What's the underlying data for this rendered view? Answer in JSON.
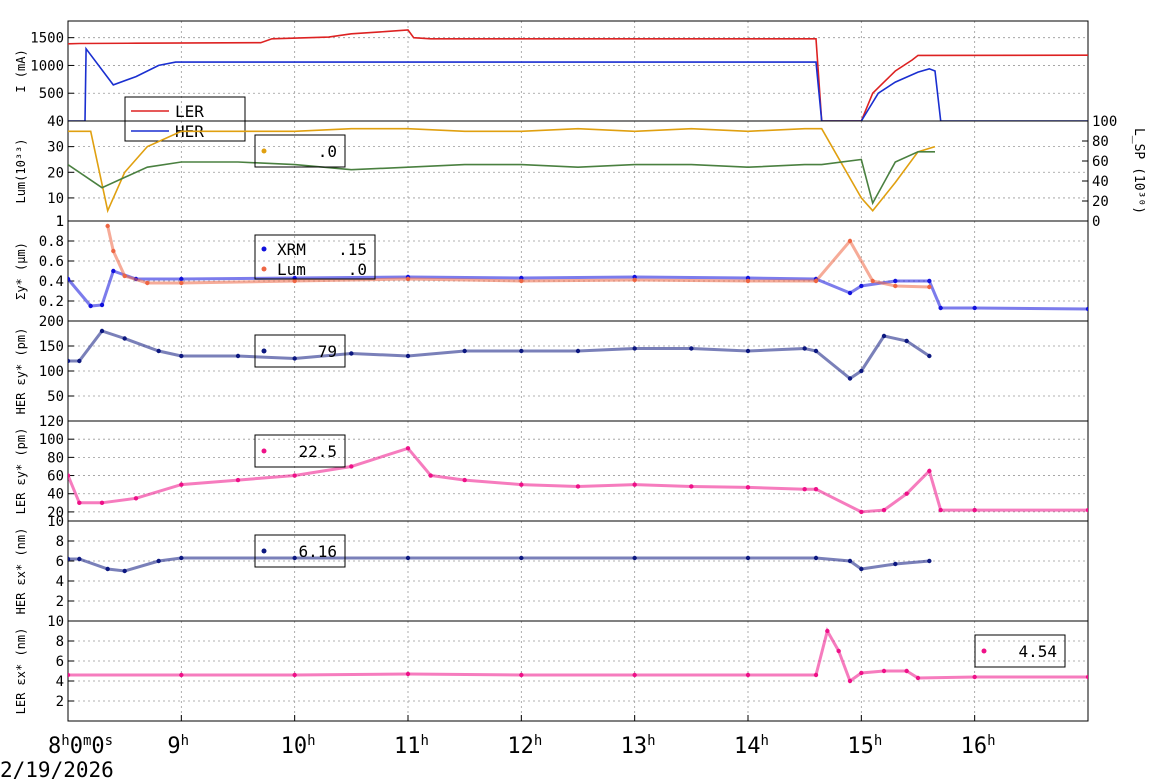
{
  "chart_data": [
    {
      "type": "line",
      "id": "current",
      "ylabel": "I (mA)",
      "yticks": [
        "500",
        "1000",
        "1500"
      ],
      "ylim": [
        0,
        1800
      ],
      "grid": true,
      "legend": {
        "placement": "bottom-left",
        "entries": [
          {
            "name": "LER",
            "color": "#dd2222"
          },
          {
            "name": "HER",
            "color": "#1a2fd0"
          }
        ]
      },
      "series": [
        {
          "name": "LER",
          "color": "#dd2222",
          "x": [
            8.0,
            8.1,
            8.6,
            9.7,
            9.8,
            10.3,
            10.5,
            10.8,
            11.0,
            11.05,
            11.2,
            14.6,
            14.65,
            15.0,
            15.1,
            15.2,
            15.3,
            15.45,
            15.5,
            17.0
          ],
          "y": [
            1390,
            1395,
            1400,
            1410,
            1480,
            1510,
            1570,
            1610,
            1640,
            1500,
            1480,
            1480,
            0,
            0,
            500,
            700,
            900,
            1100,
            1180,
            1185
          ]
        },
        {
          "name": "HER",
          "color": "#1a2fd0",
          "x": [
            8.0,
            8.15,
            8.16,
            8.4,
            8.6,
            8.8,
            8.95,
            14.6,
            14.65,
            15.0,
            15.15,
            15.3,
            15.5,
            15.6,
            15.65,
            15.7,
            17.0
          ],
          "y": [
            0,
            0,
            1300,
            650,
            800,
            1000,
            1060,
            1060,
            0,
            0,
            500,
            700,
            880,
            940,
            900,
            0,
            0
          ]
        }
      ]
    },
    {
      "type": "line",
      "id": "luminosity",
      "ylabel": "Lum(10³³)",
      "yticks": [
        "1",
        "10",
        "20",
        "30",
        "40"
      ],
      "ylim": [
        1,
        40
      ],
      "y2label": "L_SP (10³⁰)",
      "y2ticks": [
        "0",
        "20",
        "40",
        "60",
        "80",
        "100"
      ],
      "y2lim": [
        0,
        100
      ],
      "grid": true,
      "legend": {
        "placement": "top-center",
        "entries": [
          {
            "name": "",
            "value": ".0",
            "color": "#e0a010"
          }
        ]
      },
      "series": [
        {
          "name": "",
          "color": "#e0a010",
          "x": [
            8.0,
            8.2,
            8.35,
            8.5,
            8.7,
            9.0,
            9.5,
            10.0,
            10.5,
            11.0,
            11.5,
            12.0,
            12.5,
            13.0,
            13.5,
            14.0,
            14.5,
            14.65,
            15.0,
            15.1,
            15.3,
            15.5,
            15.65
          ],
          "y": [
            36,
            36,
            5,
            20,
            30,
            36,
            36,
            36,
            37,
            37,
            36,
            36,
            37,
            36,
            37,
            36,
            37,
            37,
            10,
            5,
            16,
            28,
            30
          ]
        },
        {
          "name": "",
          "color": "#4a8040",
          "x": [
            8.0,
            8.3,
            8.5,
            8.7,
            9.0,
            9.5,
            10.0,
            10.5,
            11.0,
            11.5,
            12.0,
            12.5,
            13.0,
            13.5,
            14.0,
            14.5,
            14.65,
            15.0,
            15.1,
            15.3,
            15.5,
            15.65
          ],
          "y": [
            23,
            14,
            18,
            22,
            24,
            24,
            23,
            21,
            22,
            23,
            23,
            22,
            23,
            23,
            22,
            23,
            23,
            25,
            8,
            24,
            28,
            28
          ]
        }
      ]
    },
    {
      "type": "scatter",
      "id": "sigma_y",
      "ylabel": "Σy* (μm)",
      "yticks": [
        "0.2",
        "0.4",
        "0.6",
        "0.8",
        "1"
      ],
      "ylim": [
        0,
        1
      ],
      "grid": true,
      "legend": {
        "placement": "top-center",
        "entries": [
          {
            "name": "XRM",
            "value": ".15",
            "color": "#1010dd"
          },
          {
            "name": "Lum",
            "value": ".0",
            "color": "#ee6644"
          }
        ]
      },
      "series": [
        {
          "name": "XRM",
          "color": "#1010dd",
          "x": [
            8.0,
            8.2,
            8.3,
            8.4,
            8.6,
            9.0,
            10.0,
            11.0,
            12.0,
            13.0,
            14.0,
            14.6,
            14.9,
            15.0,
            15.3,
            15.6,
            15.7,
            16.0,
            17.0
          ],
          "y": [
            0.42,
            0.15,
            0.16,
            0.5,
            0.42,
            0.42,
            0.43,
            0.44,
            0.43,
            0.44,
            0.43,
            0.42,
            0.28,
            0.35,
            0.4,
            0.4,
            0.13,
            0.13,
            0.12
          ]
        },
        {
          "name": "Lum",
          "color": "#ee6644",
          "x": [
            8.35,
            8.4,
            8.5,
            8.7,
            9.0,
            10.0,
            11.0,
            12.0,
            13.0,
            14.0,
            14.6,
            14.9,
            15.1,
            15.3,
            15.6
          ],
          "y": [
            0.95,
            0.7,
            0.45,
            0.38,
            0.38,
            0.4,
            0.42,
            0.4,
            0.41,
            0.4,
            0.4,
            0.8,
            0.4,
            0.35,
            0.34
          ]
        }
      ]
    },
    {
      "type": "scatter",
      "id": "her_eps_y",
      "ylabel": "HER εy* (pm)",
      "yticks": [
        "50",
        "100",
        "150",
        "200"
      ],
      "ylim": [
        0,
        200
      ],
      "grid": true,
      "legend": {
        "placement": "top-center",
        "entries": [
          {
            "name": "",
            "value": "79",
            "color": "#0c1880"
          }
        ]
      },
      "series": [
        {
          "name": "",
          "color": "#0c1880",
          "x": [
            8.0,
            8.1,
            8.3,
            8.5,
            8.8,
            9.0,
            9.5,
            10.0,
            10.5,
            11.0,
            11.5,
            12.0,
            12.5,
            13.0,
            13.5,
            14.0,
            14.5,
            14.6,
            14.9,
            15.0,
            15.2,
            15.4,
            15.6
          ],
          "y": [
            120,
            120,
            180,
            165,
            140,
            130,
            130,
            125,
            135,
            130,
            140,
            140,
            140,
            145,
            145,
            140,
            145,
            140,
            85,
            100,
            170,
            160,
            130
          ]
        }
      ]
    },
    {
      "type": "scatter",
      "id": "ler_eps_y",
      "ylabel": "LER εy* (pm)",
      "yticks": [
        "10",
        "20",
        "40",
        "60",
        "80",
        "100",
        "120"
      ],
      "ylim": [
        10,
        120
      ],
      "grid": true,
      "legend": {
        "placement": "top-center",
        "entries": [
          {
            "name": "",
            "value": "22.5",
            "color": "#ee1188"
          }
        ]
      },
      "series": [
        {
          "name": "",
          "color": "#ee1188",
          "x": [
            8.0,
            8.1,
            8.3,
            8.6,
            9.0,
            9.5,
            10.0,
            10.5,
            11.0,
            11.2,
            11.5,
            12.0,
            12.5,
            13.0,
            13.5,
            14.0,
            14.5,
            14.6,
            15.0,
            15.2,
            15.4,
            15.6,
            15.7,
            16.0,
            17.0
          ],
          "y": [
            60,
            30,
            30,
            35,
            50,
            55,
            60,
            70,
            90,
            60,
            55,
            50,
            48,
            50,
            48,
            47,
            45,
            45,
            20,
            22,
            40,
            65,
            22,
            22,
            22
          ]
        }
      ]
    },
    {
      "type": "scatter",
      "id": "her_eps_x",
      "ylabel": "HER εx* (nm)",
      "yticks": [
        "2",
        "4",
        "6",
        "8"
      ],
      "ylim": [
        0,
        10
      ],
      "grid": true,
      "legend": {
        "placement": "top-center",
        "entries": [
          {
            "name": "",
            "value": "6.16",
            "color": "#0c1880"
          }
        ]
      },
      "series": [
        {
          "name": "",
          "color": "#0c1880",
          "x": [
            8.0,
            8.1,
            8.35,
            8.5,
            8.8,
            9.0,
            10.0,
            11.0,
            12.0,
            13.0,
            14.0,
            14.6,
            14.9,
            15.0,
            15.3,
            15.6
          ],
          "y": [
            6.2,
            6.2,
            5.2,
            5.0,
            6.0,
            6.3,
            6.3,
            6.3,
            6.3,
            6.3,
            6.3,
            6.3,
            6.0,
            5.2,
            5.7,
            6.0
          ]
        }
      ]
    },
    {
      "type": "scatter",
      "id": "ler_eps_x",
      "ylabel": "LER εx* (nm)",
      "yticks": [
        "2",
        "4",
        "6",
        "8",
        "10"
      ],
      "ylim": [
        0,
        10
      ],
      "grid": true,
      "legend": {
        "placement": "top-right",
        "entries": [
          {
            "name": "",
            "value": "4.54",
            "color": "#ee1188"
          }
        ]
      },
      "series": [
        {
          "name": "",
          "color": "#ee1188",
          "x": [
            8.0,
            9.0,
            10.0,
            11.0,
            12.0,
            13.0,
            14.0,
            14.6,
            14.7,
            14.8,
            14.9,
            15.0,
            15.2,
            15.4,
            15.5,
            16.0,
            17.0
          ],
          "y": [
            4.6,
            4.6,
            4.6,
            4.7,
            4.6,
            4.6,
            4.6,
            4.6,
            9,
            7,
            4,
            4.8,
            5,
            5,
            4.3,
            4.4,
            4.4
          ]
        }
      ]
    }
  ],
  "x_axis": {
    "range": [
      8.0,
      17.0
    ],
    "ticks": [
      {
        "value": 8,
        "label": "8",
        "sup": "h",
        "extra": "0",
        "extrasup": "m",
        "extra2": "0",
        "extra2sup": "s"
      },
      {
        "value": 9,
        "label": "9",
        "sup": "h"
      },
      {
        "value": 10,
        "label": "10",
        "sup": "h"
      },
      {
        "value": 11,
        "label": "11",
        "sup": "h"
      },
      {
        "value": 12,
        "label": "12",
        "sup": "h"
      },
      {
        "value": 13,
        "label": "13",
        "sup": "h"
      },
      {
        "value": 14,
        "label": "14",
        "sup": "h"
      },
      {
        "value": 15,
        "label": "15",
        "sup": "h"
      },
      {
        "value": 16,
        "label": "16",
        "sup": "h"
      }
    ],
    "date": "2/19/2026"
  }
}
